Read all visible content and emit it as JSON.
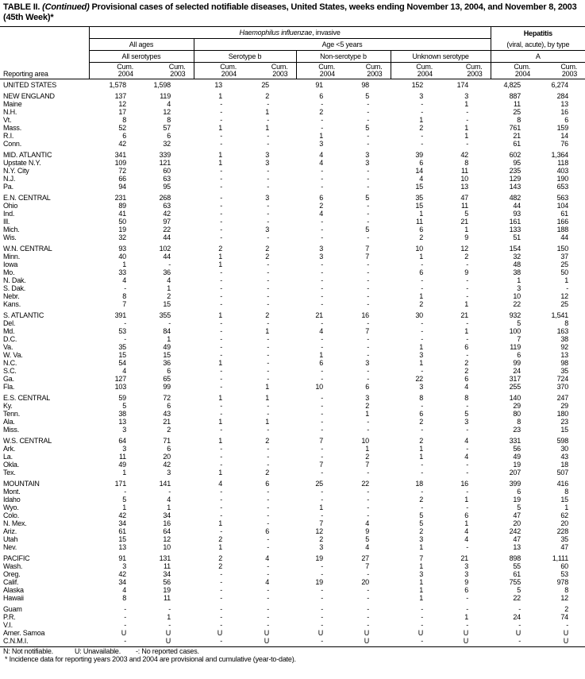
{
  "title": {
    "prefix": "TABLE II. ",
    "continued": "(Continued)",
    "text": " Provisional cases of selected notifiable diseases, United States, weeks ending November 13, 2004, and November 8, 2003 (45th Week)*"
  },
  "header": {
    "disease1": "Haemophilus influenzae",
    "disease1_suffix": ", invasive",
    "disease2_line1": "Hepatitis",
    "disease2_line2": "(viral, acute), by type",
    "all_ages": "All ages",
    "age_under5": "Age <5 years",
    "all_serotypes": "All serotypes",
    "serotype_b": "Serotype b",
    "non_serotype_b": "Non-serotype b",
    "unknown_serotype": "Unknown serotype",
    "type_a": "A",
    "reporting_area": "Reporting area",
    "cum_2004": "Cum.\n2004",
    "cum_2003": "Cum.\n2003"
  },
  "groups": [
    [
      [
        "UNITED STATES",
        "1,578",
        "1,598",
        "13",
        "25",
        "91",
        "98",
        "152",
        "174",
        "4,825",
        "6,274"
      ]
    ],
    [
      [
        "NEW ENGLAND",
        "137",
        "119",
        "1",
        "2",
        "6",
        "5",
        "3",
        "3",
        "887",
        "284"
      ],
      [
        "Maine",
        "12",
        "4",
        "-",
        "-",
        "-",
        "-",
        "-",
        "1",
        "11",
        "13"
      ],
      [
        "N.H.",
        "17",
        "12",
        "-",
        "1",
        "2",
        "-",
        "-",
        "-",
        "25",
        "16"
      ],
      [
        "Vt.",
        "8",
        "8",
        "-",
        "-",
        "-",
        "-",
        "1",
        "-",
        "8",
        "6"
      ],
      [
        "Mass.",
        "52",
        "57",
        "1",
        "1",
        "-",
        "5",
        "2",
        "1",
        "761",
        "159"
      ],
      [
        "R.I.",
        "6",
        "6",
        "-",
        "-",
        "1",
        "-",
        "-",
        "1",
        "21",
        "14"
      ],
      [
        "Conn.",
        "42",
        "32",
        "-",
        "-",
        "3",
        "-",
        "-",
        "-",
        "61",
        "76"
      ]
    ],
    [
      [
        "MID. ATLANTIC",
        "341",
        "339",
        "1",
        "3",
        "4",
        "3",
        "39",
        "42",
        "602",
        "1,364"
      ],
      [
        "Upstate N.Y.",
        "109",
        "121",
        "1",
        "3",
        "4",
        "3",
        "6",
        "8",
        "95",
        "118"
      ],
      [
        "N.Y. City",
        "72",
        "60",
        "-",
        "-",
        "-",
        "-",
        "14",
        "11",
        "235",
        "403"
      ],
      [
        "N.J.",
        "66",
        "63",
        "-",
        "-",
        "-",
        "-",
        "4",
        "10",
        "129",
        "190"
      ],
      [
        "Pa.",
        "94",
        "95",
        "-",
        "-",
        "-",
        "-",
        "15",
        "13",
        "143",
        "653"
      ]
    ],
    [
      [
        "E.N. CENTRAL",
        "231",
        "268",
        "-",
        "3",
        "6",
        "5",
        "35",
        "47",
        "482",
        "563"
      ],
      [
        "Ohio",
        "89",
        "63",
        "-",
        "-",
        "2",
        "-",
        "15",
        "11",
        "44",
        "104"
      ],
      [
        "Ind.",
        "41",
        "42",
        "-",
        "-",
        "4",
        "-",
        "1",
        "5",
        "93",
        "61"
      ],
      [
        "Ill.",
        "50",
        "97",
        "-",
        "-",
        "-",
        "-",
        "11",
        "21",
        "161",
        "166"
      ],
      [
        "Mich.",
        "19",
        "22",
        "-",
        "3",
        "-",
        "5",
        "6",
        "1",
        "133",
        "188"
      ],
      [
        "Wis.",
        "32",
        "44",
        "-",
        "-",
        "-",
        "-",
        "2",
        "9",
        "51",
        "44"
      ]
    ],
    [
      [
        "W.N. CENTRAL",
        "93",
        "102",
        "2",
        "2",
        "3",
        "7",
        "10",
        "12",
        "154",
        "150"
      ],
      [
        "Minn.",
        "40",
        "44",
        "1",
        "2",
        "3",
        "7",
        "1",
        "2",
        "32",
        "37"
      ],
      [
        "Iowa",
        "1",
        "-",
        "1",
        "-",
        "-",
        "-",
        "-",
        "-",
        "48",
        "25"
      ],
      [
        "Mo.",
        "33",
        "36",
        "-",
        "-",
        "-",
        "-",
        "6",
        "9",
        "38",
        "50"
      ],
      [
        "N. Dak.",
        "4",
        "4",
        "-",
        "-",
        "-",
        "-",
        "-",
        "-",
        "1",
        "1"
      ],
      [
        "S. Dak.",
        "-",
        "1",
        "-",
        "-",
        "-",
        "-",
        "-",
        "-",
        "3",
        "-"
      ],
      [
        "Nebr.",
        "8",
        "2",
        "-",
        "-",
        "-",
        "-",
        "1",
        "-",
        "10",
        "12"
      ],
      [
        "Kans.",
        "7",
        "15",
        "-",
        "-",
        "-",
        "-",
        "2",
        "1",
        "22",
        "25"
      ]
    ],
    [
      [
        "S. ATLANTIC",
        "391",
        "355",
        "1",
        "2",
        "21",
        "16",
        "30",
        "21",
        "932",
        "1,541"
      ],
      [
        "Del.",
        "-",
        "-",
        "-",
        "-",
        "-",
        "-",
        "-",
        "-",
        "5",
        "8"
      ],
      [
        "Md.",
        "53",
        "84",
        "-",
        "1",
        "4",
        "7",
        "-",
        "1",
        "100",
        "163"
      ],
      [
        "D.C.",
        "-",
        "1",
        "-",
        "-",
        "-",
        "-",
        "-",
        "-",
        "7",
        "38"
      ],
      [
        "Va.",
        "35",
        "49",
        "-",
        "-",
        "-",
        "-",
        "1",
        "6",
        "119",
        "92"
      ],
      [
        "W. Va.",
        "15",
        "15",
        "-",
        "-",
        "1",
        "-",
        "3",
        "-",
        "6",
        "13"
      ],
      [
        "N.C.",
        "54",
        "36",
        "1",
        "-",
        "6",
        "3",
        "1",
        "2",
        "99",
        "98"
      ],
      [
        "S.C.",
        "4",
        "6",
        "-",
        "-",
        "-",
        "-",
        "-",
        "2",
        "24",
        "35"
      ],
      [
        "Ga.",
        "127",
        "65",
        "-",
        "-",
        "-",
        "-",
        "22",
        "6",
        "317",
        "724"
      ],
      [
        "Fla.",
        "103",
        "99",
        "-",
        "1",
        "10",
        "6",
        "3",
        "4",
        "255",
        "370"
      ]
    ],
    [
      [
        "E.S. CENTRAL",
        "59",
        "72",
        "1",
        "1",
        "-",
        "3",
        "8",
        "8",
        "140",
        "247"
      ],
      [
        "Ky.",
        "5",
        "6",
        "-",
        "-",
        "-",
        "2",
        "-",
        "-",
        "29",
        "29"
      ],
      [
        "Tenn.",
        "38",
        "43",
        "-",
        "-",
        "-",
        "1",
        "6",
        "5",
        "80",
        "180"
      ],
      [
        "Ala.",
        "13",
        "21",
        "1",
        "1",
        "-",
        "-",
        "2",
        "3",
        "8",
        "23"
      ],
      [
        "Miss.",
        "3",
        "2",
        "-",
        "-",
        "-",
        "-",
        "-",
        "-",
        "23",
        "15"
      ]
    ],
    [
      [
        "W.S. CENTRAL",
        "64",
        "71",
        "1",
        "2",
        "7",
        "10",
        "2",
        "4",
        "331",
        "598"
      ],
      [
        "Ark.",
        "3",
        "6",
        "-",
        "-",
        "-",
        "1",
        "1",
        "-",
        "56",
        "30"
      ],
      [
        "La.",
        "11",
        "20",
        "-",
        "-",
        "-",
        "2",
        "1",
        "4",
        "49",
        "43"
      ],
      [
        "Okla.",
        "49",
        "42",
        "-",
        "-",
        "7",
        "7",
        "-",
        "-",
        "19",
        "18"
      ],
      [
        "Tex.",
        "1",
        "3",
        "1",
        "2",
        "-",
        "-",
        "-",
        "-",
        "207",
        "507"
      ]
    ],
    [
      [
        "MOUNTAIN",
        "171",
        "141",
        "4",
        "6",
        "25",
        "22",
        "18",
        "16",
        "399",
        "416"
      ],
      [
        "Mont.",
        "-",
        "-",
        "-",
        "-",
        "-",
        "-",
        "-",
        "-",
        "6",
        "8"
      ],
      [
        "Idaho",
        "5",
        "4",
        "-",
        "-",
        "-",
        "-",
        "2",
        "1",
        "19",
        "15"
      ],
      [
        "Wyo.",
        "1",
        "1",
        "-",
        "-",
        "1",
        "-",
        "-",
        "-",
        "5",
        "1"
      ],
      [
        "Colo.",
        "42",
        "34",
        "-",
        "-",
        "-",
        "-",
        "5",
        "6",
        "47",
        "62"
      ],
      [
        "N. Mex.",
        "34",
        "16",
        "1",
        "-",
        "7",
        "4",
        "5",
        "1",
        "20",
        "20"
      ],
      [
        "Ariz.",
        "61",
        "64",
        "-",
        "6",
        "12",
        "9",
        "2",
        "4",
        "242",
        "228"
      ],
      [
        "Utah",
        "15",
        "12",
        "2",
        "-",
        "2",
        "5",
        "3",
        "4",
        "47",
        "35"
      ],
      [
        "Nev.",
        "13",
        "10",
        "1",
        "-",
        "3",
        "4",
        "1",
        "-",
        "13",
        "47"
      ]
    ],
    [
      [
        "PACIFIC",
        "91",
        "131",
        "2",
        "4",
        "19",
        "27",
        "7",
        "21",
        "898",
        "1,111"
      ],
      [
        "Wash.",
        "3",
        "11",
        "2",
        "-",
        "-",
        "7",
        "1",
        "3",
        "55",
        "60"
      ],
      [
        "Oreg.",
        "42",
        "34",
        "-",
        "-",
        "-",
        "-",
        "3",
        "3",
        "61",
        "53"
      ],
      [
        "Calif.",
        "34",
        "56",
        "-",
        "4",
        "19",
        "20",
        "1",
        "9",
        "755",
        "978"
      ],
      [
        "Alaska",
        "4",
        "19",
        "-",
        "-",
        "-",
        "-",
        "1",
        "6",
        "5",
        "8"
      ],
      [
        "Hawaii",
        "8",
        "11",
        "-",
        "-",
        "-",
        "-",
        "1",
        "-",
        "22",
        "12"
      ]
    ],
    [
      [
        "Guam",
        "-",
        "-",
        "-",
        "-",
        "-",
        "-",
        "-",
        "-",
        "-",
        "2"
      ],
      [
        "P.R.",
        "-",
        "1",
        "-",
        "-",
        "-",
        "-",
        "-",
        "1",
        "24",
        "74"
      ],
      [
        "V.I.",
        "-",
        "-",
        "-",
        "-",
        "-",
        "-",
        "-",
        "-",
        "-",
        "-"
      ],
      [
        "Amer. Samoa",
        "U",
        "U",
        "U",
        "U",
        "U",
        "U",
        "U",
        "U",
        "U",
        "U"
      ],
      [
        "C.N.M.I.",
        "-",
        "U",
        "-",
        "U",
        "-",
        "U",
        "-",
        "U",
        "-",
        "U"
      ]
    ]
  ],
  "footnotes": {
    "n": "N: Not notifiable.",
    "u": "U: Unavailable.",
    "dash": "-: No reported cases.",
    "star": "* Incidence data for reporting years 2003 and 2004 are provisional and cumulative (year-to-date)."
  }
}
